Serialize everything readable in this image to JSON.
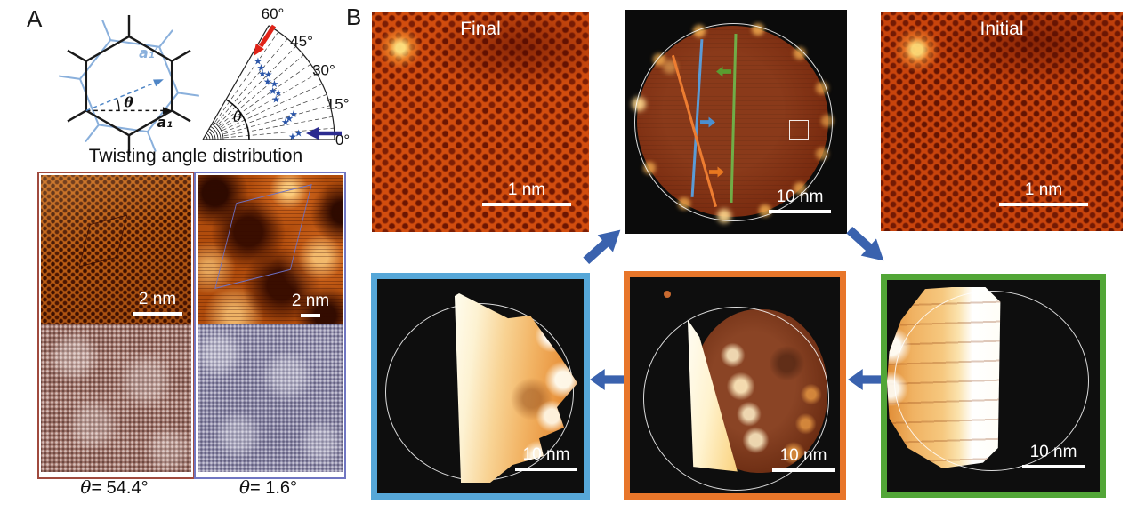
{
  "figure": {
    "panel_a_label": "A",
    "panel_b_label": "B"
  },
  "panel_a": {
    "caption": "Twisting angle distribution",
    "lattice": {
      "a1": "a₁",
      "a1_prime": "a₁′",
      "theta": "θ"
    },
    "fan": {
      "theta": "θ",
      "ticks": [
        {
          "angle": 60,
          "label": "60°"
        },
        {
          "angle": 45,
          "label": "45°"
        },
        {
          "angle": 30,
          "label": "30°"
        },
        {
          "angle": 15,
          "label": "15°"
        },
        {
          "angle": 0,
          "label": "0°"
        }
      ],
      "stars": [
        [
          55,
          108
        ],
        [
          51,
          104
        ],
        [
          48,
          100
        ],
        [
          45,
          104
        ],
        [
          42,
          98
        ],
        [
          38,
          102
        ],
        [
          35,
          96
        ],
        [
          32,
          100
        ],
        [
          29,
          94
        ],
        [
          16,
          106
        ],
        [
          14,
          100
        ],
        [
          12,
          95
        ],
        [
          4,
          108
        ],
        [
          2,
          101
        ]
      ],
      "star_color": "#2a55a8",
      "red_arrow_color": "#e02318",
      "navy_arrow_color": "#2b2b8f"
    },
    "images": [
      {
        "scale_label": "2 nm",
        "theta": {
          "sym": "θ",
          "val": "= 54.4°"
        },
        "border_color": "#a04a3e"
      },
      {
        "scale_label": "2 nm",
        "theta": {
          "sym": "θ",
          "val": "= 1.6°"
        },
        "border_color": "#7076c2"
      }
    ]
  },
  "panel_b": {
    "final_title": "Final",
    "initial_title": "Initial",
    "scale_1nm": "1 nm",
    "scale_10nm": "10 nm",
    "arrow_color": "#3a62ae",
    "overview": {
      "line_blue": "#5b9bd5",
      "line_orange": "#ed7d31",
      "line_green": "#70ad47",
      "arrow_blue": "#4a8fd0",
      "arrow_orange": "#e87820",
      "arrow_green": "#5a9c30"
    },
    "frames": {
      "blue": "#56a7d8",
      "orange": "#e8762a",
      "green": "#52a637"
    }
  }
}
